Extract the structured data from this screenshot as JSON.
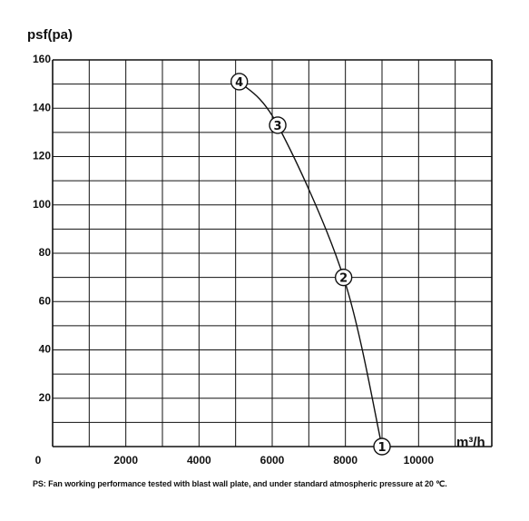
{
  "chart_data": {
    "type": "line",
    "ylabel": "psf(pa)",
    "xlabel": "m³/h",
    "xlim": [
      0,
      12000
    ],
    "ylim": [
      0,
      160
    ],
    "x_ticks": [
      "0",
      "2000",
      "4000",
      "6000",
      "8000",
      "10000"
    ],
    "y_ticks": [
      "20",
      "40",
      "60",
      "80",
      "100",
      "120",
      "140",
      "160"
    ],
    "grid": true,
    "x_grid_step": 1000,
    "y_grid_step": 10,
    "series": [
      {
        "points": [
          {
            "x": 5100,
            "y": 151,
            "label": "4"
          },
          {
            "x": 6150,
            "y": 133,
            "label": "3"
          },
          {
            "x": 7950,
            "y": 70,
            "label": "2"
          },
          {
            "x": 9000,
            "y": 0,
            "label": "1"
          }
        ],
        "color": "#111111"
      }
    ]
  },
  "footnote": "PS: Fan working performance tested with blast wall plate, and under standard atmospheric pressure at 20 ℃."
}
